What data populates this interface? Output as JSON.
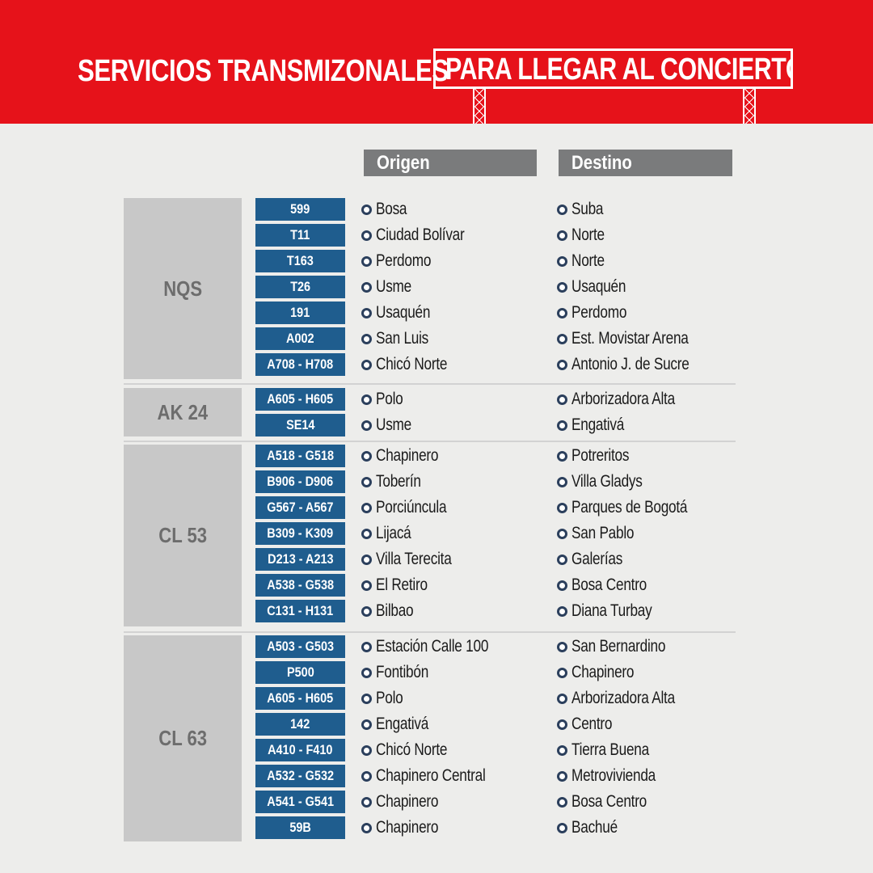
{
  "header": {
    "title_part1": "SERVICIOS TRANSMIZONALES",
    "title_part2": "PARA LLEGAR AL CONCIERTO"
  },
  "columns": {
    "origen": "Origen",
    "destino": "Destino"
  },
  "colors": {
    "red": "#e6121a",
    "route_blue": "#1f5d8e",
    "gray_header": "#7a7b7c",
    "group_gray": "#c8c8c8"
  },
  "groups": [
    {
      "name": "NQS",
      "rows": [
        {
          "route": "599",
          "origen": "Bosa",
          "destino": "Suba"
        },
        {
          "route": "T11",
          "origen": "Ciudad Bolívar",
          "destino": "Norte"
        },
        {
          "route": "T163",
          "origen": "Perdomo",
          "destino": "Norte"
        },
        {
          "route": "T26",
          "origen": "Usme",
          "destino": "Usaquén"
        },
        {
          "route": "191",
          "origen": "Usaquén",
          "destino": "Perdomo"
        },
        {
          "route": "A002",
          "origen": "San Luis",
          "destino": "Est. Movistar Arena"
        },
        {
          "route": "A708 - H708",
          "origen": "Chicó Norte",
          "destino": "Antonio J. de Sucre"
        }
      ]
    },
    {
      "name": "AK 24",
      "rows": [
        {
          "route": "A605 - H605",
          "origen": "Polo",
          "destino": "Arborizadora Alta"
        },
        {
          "route": "SE14",
          "origen": "Usme",
          "destino": "Engativá"
        }
      ]
    },
    {
      "name": "CL 53",
      "rows": [
        {
          "route": "A518 - G518",
          "origen": "Chapinero",
          "destino": "Potreritos"
        },
        {
          "route": "B906 - D906",
          "origen": "Toberín",
          "destino": "Villa Gladys"
        },
        {
          "route": "G567 - A567",
          "origen": "Porciúncula",
          "destino": "Parques de Bogotá"
        },
        {
          "route": "B309 - K309",
          "origen": "Lijacá",
          "destino": "San Pablo"
        },
        {
          "route": "D213 - A213",
          "origen": "Villa Terecita",
          "destino": "Galerías"
        },
        {
          "route": "A538 - G538",
          "origen": "El Retiro",
          "destino": "Bosa Centro"
        },
        {
          "route": "C131 - H131",
          "origen": "Bilbao",
          "destino": "Diana Turbay"
        }
      ]
    },
    {
      "name": "CL 63",
      "rows": [
        {
          "route": "A503 - G503",
          "origen": "Estación Calle 100",
          "destino": "San Bernardino"
        },
        {
          "route": "P500",
          "origen": "Fontibón",
          "destino": "Chapinero"
        },
        {
          "route": "A605 - H605",
          "origen": "Polo",
          "destino": "Arborizadora Alta"
        },
        {
          "route": "142",
          "origen": "Engativá",
          "destino": "Centro"
        },
        {
          "route": "A410 - F410",
          "origen": "Chicó Norte",
          "destino": "Tierra Buena"
        },
        {
          "route": "A532 - G532",
          "origen": "Chapinero Central",
          "destino": "Metrovivienda"
        },
        {
          "route": "A541 - G541",
          "origen": "Chapinero",
          "destino": "Bosa Centro"
        },
        {
          "route": "59B",
          "origen": "Chapinero",
          "destino": "Bachué"
        }
      ]
    }
  ]
}
